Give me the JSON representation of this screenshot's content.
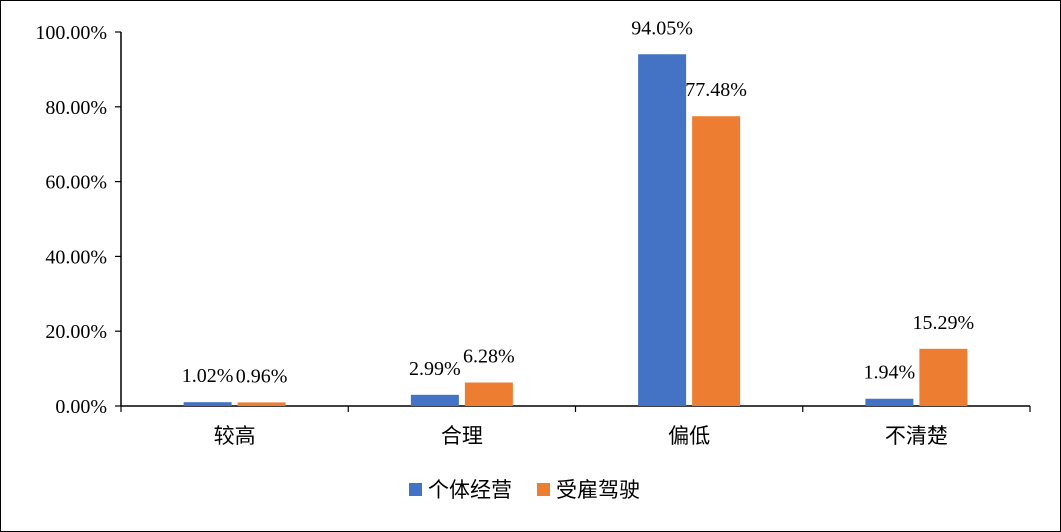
{
  "chart_data": {
    "type": "bar",
    "categories": [
      "较高",
      "合理",
      "偏低",
      "不清楚"
    ],
    "series": [
      {
        "name": "个体经营",
        "values": [
          1.02,
          2.99,
          94.05,
          1.94
        ],
        "labels": [
          "1.02%",
          "2.99%",
          "94.05%",
          "1.94%"
        ],
        "color": "#4472C4"
      },
      {
        "name": "受雇驾驶",
        "values": [
          0.96,
          6.28,
          77.48,
          15.29
        ],
        "labels": [
          "0.96%",
          "6.28%",
          "77.48%",
          "15.29%"
        ],
        "color": "#ED7D31"
      }
    ],
    "ylim": [
      0,
      100
    ],
    "yticks": [
      "0.00%",
      "20.00%",
      "40.00%",
      "60.00%",
      "80.00%",
      "100.00%"
    ],
    "ytick_values": [
      0,
      20,
      40,
      60,
      80,
      100
    ],
    "grid": false,
    "legend_position": "bottom"
  }
}
